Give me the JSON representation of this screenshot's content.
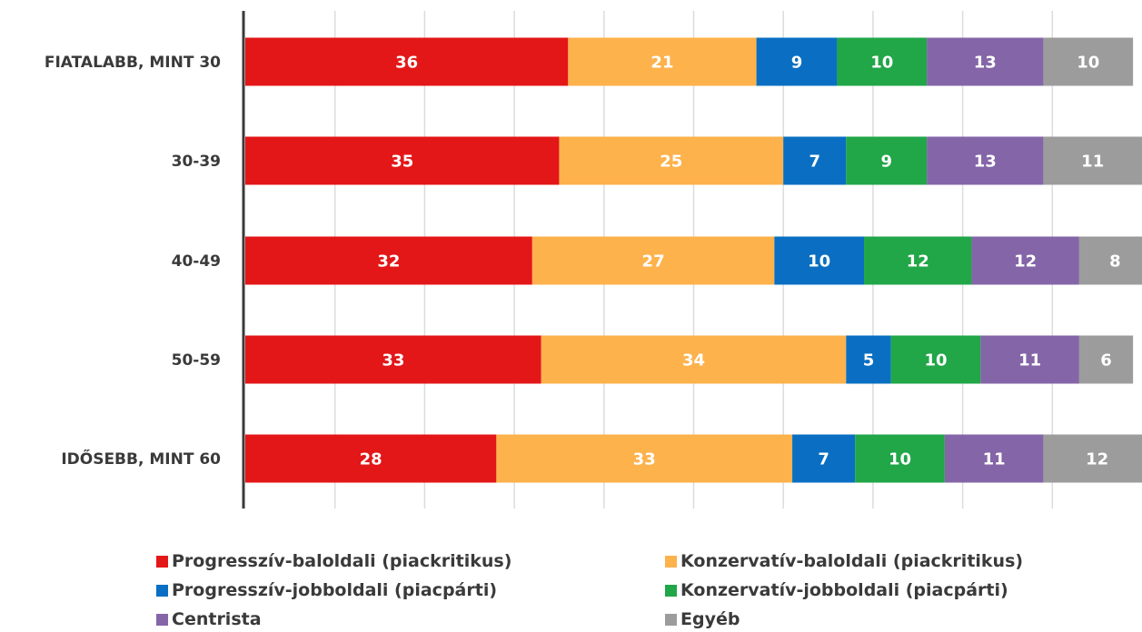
{
  "chart_data": {
    "type": "bar",
    "orientation": "horizontal",
    "stacked": true,
    "categories": [
      "FIATALABB, MINT 30",
      "30-39",
      "40-49",
      "50-59",
      "IDŐSEBB, MINT 60"
    ],
    "series": [
      {
        "name": "Progresszív-baloldali (piackritikus)",
        "color": "#e31718",
        "values": [
          36,
          35,
          32,
          33,
          28
        ]
      },
      {
        "name": "Konzervatív-baloldali (piackritikus)",
        "color": "#fdb24c",
        "values": [
          21,
          25,
          27,
          34,
          33
        ]
      },
      {
        "name": "Progresszív-jobboldali (piacpárti)",
        "color": "#0a6fc2",
        "values": [
          9,
          7,
          10,
          5,
          7
        ]
      },
      {
        "name": "Konzervatív-jobboldali (piacpárti)",
        "color": "#21a648",
        "values": [
          10,
          9,
          12,
          10,
          10
        ]
      },
      {
        "name": "Centrista",
        "color": "#8466a8",
        "values": [
          13,
          13,
          12,
          11,
          11
        ]
      },
      {
        "name": "Egyéb",
        "color": "#9c9c9c",
        "values": [
          10,
          11,
          8,
          6,
          12
        ]
      }
    ],
    "xlim": [
      0,
      100
    ],
    "grid": true,
    "legend_position": "bottom"
  }
}
